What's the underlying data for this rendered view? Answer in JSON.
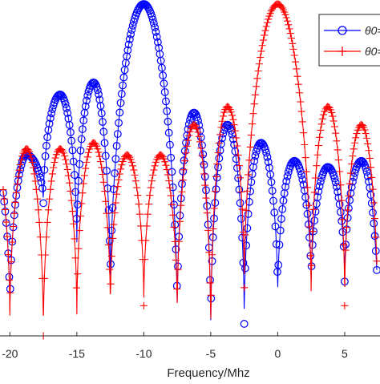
{
  "chart_data": {
    "type": "line",
    "title": "",
    "xlabel": "Frequency/Mhz",
    "ylabel": "",
    "xlim": [
      -20.5,
      7.4
    ],
    "ylim": [
      -55,
      0
    ],
    "grid": false,
    "legend": {
      "placement": "top-right",
      "entries": [
        {
          "label": "θ0=",
          "color": "#0000ff",
          "marker": "circle"
        },
        {
          "label": "θ0=",
          "color": "#ff0000",
          "marker": "plus"
        }
      ]
    },
    "x_ticks": [
      {
        "value": -20,
        "label": "-20"
      },
      {
        "value": -15,
        "label": "-15"
      },
      {
        "value": -10,
        "label": "-10"
      },
      {
        "value": -5,
        "label": "-5"
      },
      {
        "value": 0,
        "label": "0"
      },
      {
        "value": 5,
        "label": "5"
      }
    ],
    "series": [
      {
        "color": "#0000ff",
        "marker": "circle",
        "center": -10,
        "null_spacing": 2.5,
        "peak": 0,
        "lobe_peaks": [
          -30,
          -25,
          -25,
          -15,
          -13,
          -18,
          -20,
          -23,
          -26,
          -27,
          -26,
          -25,
          -26,
          -27,
          -28,
          -29
        ],
        "null_depths": [
          -40,
          -52,
          -33,
          -40,
          -48,
          -52,
          -55,
          -53,
          -49,
          -47,
          -46,
          -54,
          -51,
          -55,
          -51,
          -47,
          -48
        ],
        "x_start": -20.5,
        "x_end": 7.4
      },
      {
        "color": "#ff0000",
        "marker": "plus",
        "center": 0,
        "null_spacing": 2.5,
        "peak": 0,
        "lobe_peaks": [
          -30,
          -24,
          -24,
          -24,
          -23,
          -25,
          -25,
          -20,
          -17,
          -17,
          -20,
          -24
        ],
        "null_depths": [
          -42,
          -53,
          -55,
          -52,
          -51,
          -50,
          -52,
          -55,
          -47,
          -49,
          -50,
          -55,
          -55,
          -51,
          -49,
          -47,
          -55
        ],
        "x_start": -20.5,
        "x_end": 7.4
      }
    ]
  }
}
